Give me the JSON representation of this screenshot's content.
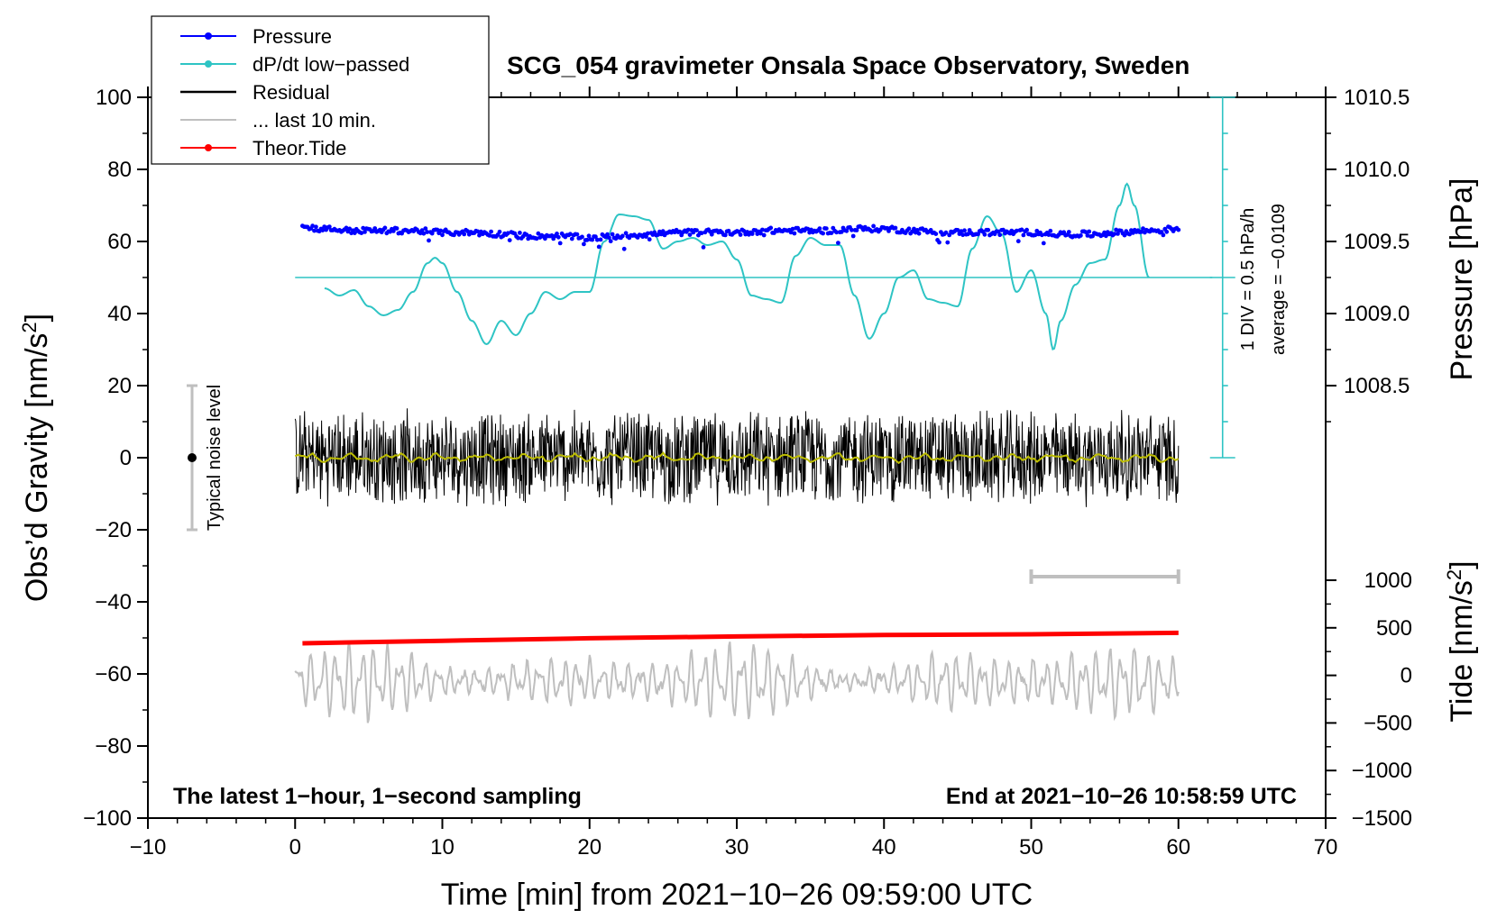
{
  "chart_data": {
    "type": "line",
    "title": "SCG_054 gravimeter Onsala Space Observatory, Sweden",
    "xlabel": "Time [min] from 2021−10−26 09:59:00 UTC",
    "ylabel_main": "Obs’d Gravity [nm/s²]",
    "ylabel_main_prefix": "Obs’d Gravity [nm/s",
    "ylabel_main_sup": "2",
    "ylabel_main_suffix": "]",
    "ylabel_pressure": "Pressure [hPa]",
    "ylabel_tide_prefix": "Tide [nm/s",
    "ylabel_tide_sup": "2",
    "ylabel_tide_suffix": "]",
    "xlim": [
      -10,
      70
    ],
    "ylim": [
      -100,
      100
    ],
    "x_ticks": [
      "−10",
      "0",
      "10",
      "20",
      "30",
      "40",
      "50",
      "60",
      "70"
    ],
    "x_tick_values": [
      -10,
      0,
      10,
      20,
      30,
      40,
      50,
      60,
      70
    ],
    "y_ticks": [
      "−100",
      "−80",
      "−60",
      "−40",
      "−20",
      "0",
      "20",
      "40",
      "60",
      "80",
      "100"
    ],
    "y_tick_values": [
      -100,
      -80,
      -60,
      -40,
      -20,
      0,
      20,
      40,
      60,
      80,
      100
    ],
    "pressure_ticks": [
      "1008.5",
      "1009.0",
      "1009.5",
      "1010.0",
      "1010.5"
    ],
    "pressure_tick_values": [
      1008.5,
      1009.0,
      1009.5,
      1010.0,
      1010.5
    ],
    "pressure_map": {
      "value_at_y0": 1008.0,
      "value_per_y_unit": 0.025
    },
    "tide_ticks": [
      "−1500",
      "−1000",
      "−500",
      "0",
      "500",
      "1000"
    ],
    "tide_tick_values": [
      -1500,
      -1000,
      -500,
      0,
      500,
      1000
    ],
    "tide_map": {
      "value_at_y_min100": -1500,
      "value_at_y_min34": 1000
    },
    "legend": {
      "placement": "top-left",
      "entries": [
        {
          "label": "Pressure",
          "color": "#0000ff",
          "marker": true
        },
        {
          "label": "dP/dt low−passed",
          "color": "#2ec4c4",
          "marker": true
        },
        {
          "label": "Residual",
          "color": "#000000",
          "marker": false
        },
        {
          "label": "... last 10 min.",
          "color": "#bfbfbf",
          "marker": false
        },
        {
          "label": "Theor.Tide",
          "color": "#ff0000",
          "marker": true
        }
      ]
    },
    "dpdt_scale_note": "1 DIV = 0.5 hPa/h",
    "dpdt_average_note": "average = −0.0109",
    "noise_note": "Typical noise level",
    "noise_bar": {
      "x": -7,
      "y_low": -20,
      "y_high": 20,
      "center": 0
    },
    "latest_note": "The latest 1−hour, 1−second sampling",
    "end_note": "End at 2021−10−26 10:58:59 UTC",
    "last10_bar": {
      "x_start": 50,
      "x_end": 60,
      "y": -33
    },
    "dpdt_axis": {
      "x": 63,
      "y_bottom": 0,
      "y_top": 100,
      "baseline_y": 50
    },
    "series": [
      {
        "name": "dP/dt low−passed",
        "color": "#2ec4c4",
        "points": [
          [
            2,
            47
          ],
          [
            3,
            45
          ],
          [
            4,
            46.5
          ],
          [
            5,
            42
          ],
          [
            6,
            39.5
          ],
          [
            7,
            41
          ],
          [
            8,
            46
          ],
          [
            9,
            54
          ],
          [
            9.5,
            55.5
          ],
          [
            10,
            54
          ],
          [
            11,
            46
          ],
          [
            12,
            38
          ],
          [
            13,
            31.5
          ],
          [
            14,
            38
          ],
          [
            15,
            34
          ],
          [
            16,
            40
          ],
          [
            17,
            46
          ],
          [
            18,
            44
          ],
          [
            19,
            46
          ],
          [
            20,
            46
          ],
          [
            21,
            60
          ],
          [
            22,
            67.5
          ],
          [
            23,
            67
          ],
          [
            24,
            66
          ],
          [
            25,
            58
          ],
          [
            26,
            60
          ],
          [
            27,
            61
          ],
          [
            28,
            59
          ],
          [
            29,
            60
          ],
          [
            30,
            55
          ],
          [
            31,
            45
          ],
          [
            32,
            44
          ],
          [
            33,
            43
          ],
          [
            34,
            56
          ],
          [
            35,
            61
          ],
          [
            36,
            59
          ],
          [
            37,
            59
          ],
          [
            38,
            45
          ],
          [
            39,
            33
          ],
          [
            40,
            40
          ],
          [
            41,
            50
          ],
          [
            42,
            52
          ],
          [
            43,
            44
          ],
          [
            44,
            43
          ],
          [
            45,
            42
          ],
          [
            46,
            58
          ],
          [
            47,
            67
          ],
          [
            48,
            62
          ],
          [
            49,
            46
          ],
          [
            50,
            52
          ],
          [
            51,
            40
          ],
          [
            51.5,
            30
          ],
          [
            52,
            38
          ],
          [
            53,
            48
          ],
          [
            54,
            54
          ],
          [
            55,
            55
          ],
          [
            56,
            70
          ],
          [
            56.5,
            76
          ],
          [
            57,
            70
          ],
          [
            58,
            50
          ]
        ]
      },
      {
        "name": "Pressure",
        "color": "#0000ff",
        "points": [
          [
            0.5,
            64
          ],
          [
            2,
            63.5
          ],
          [
            4,
            63
          ],
          [
            6,
            63
          ],
          [
            8,
            63
          ],
          [
            10,
            62.5
          ],
          [
            12,
            62.5
          ],
          [
            14,
            62
          ],
          [
            16,
            61.5
          ],
          [
            18,
            61.5
          ],
          [
            20,
            61
          ],
          [
            22,
            61.5
          ],
          [
            24,
            62
          ],
          [
            26,
            62.5
          ],
          [
            28,
            62.5
          ],
          [
            30,
            62.5
          ],
          [
            32,
            63
          ],
          [
            34,
            63
          ],
          [
            36,
            63
          ],
          [
            38,
            63.5
          ],
          [
            40,
            63.5
          ],
          [
            42,
            63
          ],
          [
            44,
            62.5
          ],
          [
            46,
            62.5
          ],
          [
            48,
            62.5
          ],
          [
            50,
            62.5
          ],
          [
            52,
            62
          ],
          [
            54,
            62
          ],
          [
            56,
            62.5
          ],
          [
            58,
            63
          ],
          [
            60,
            63.5
          ]
        ]
      },
      {
        "name": "Theor.Tide",
        "color": "#ff0000",
        "points": [
          [
            0.5,
            -51.5
          ],
          [
            10,
            -50.8
          ],
          [
            20,
            -50.1
          ],
          [
            30,
            -49.6
          ],
          [
            40,
            -49.2
          ],
          [
            50,
            -49
          ],
          [
            60,
            -48.6
          ]
        ]
      }
    ],
    "residual": {
      "x_start": 0,
      "x_end": 60,
      "amplitude": 14,
      "color": "#000000",
      "smooth_color": "#bdbd00"
    },
    "last10": {
      "x_start": 0,
      "x_end": 60,
      "center": -62,
      "amplitude": 8,
      "color": "#bfbfbf"
    }
  }
}
